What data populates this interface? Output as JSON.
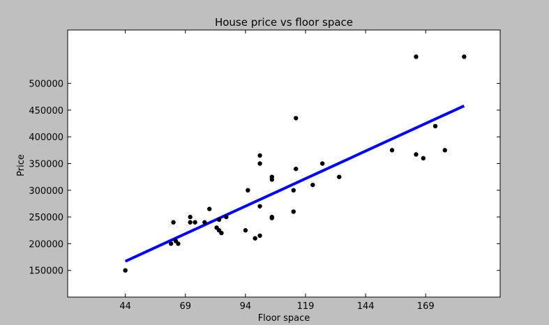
{
  "chart_data": {
    "type": "scatter",
    "title": "House price vs floor space",
    "xlabel": "Floor space",
    "ylabel": "Price",
    "xlim": [
      20,
      200
    ],
    "ylim": [
      100000,
      600000
    ],
    "xticks": [
      44,
      69,
      94,
      119,
      144,
      169
    ],
    "yticks": [
      150000,
      200000,
      250000,
      300000,
      350000,
      400000,
      450000,
      500000
    ],
    "grid": false,
    "point_color": "#000000",
    "line_color": "#0000ff",
    "series": [
      {
        "type": "scatter",
        "points": [
          [
            44,
            150000
          ],
          [
            63,
            200000
          ],
          [
            64,
            240000
          ],
          [
            65,
            205000
          ],
          [
            66,
            200000
          ],
          [
            71,
            250000
          ],
          [
            71,
            240000
          ],
          [
            73,
            240000
          ],
          [
            77,
            240000
          ],
          [
            79,
            265000
          ],
          [
            82,
            230000
          ],
          [
            83,
            225000
          ],
          [
            83,
            245000
          ],
          [
            84,
            220000
          ],
          [
            86,
            250000
          ],
          [
            94,
            225000
          ],
          [
            95,
            300000
          ],
          [
            98,
            210000
          ],
          [
            100,
            215000
          ],
          [
            100,
            270000
          ],
          [
            100,
            350000
          ],
          [
            100,
            365000
          ],
          [
            105,
            320000
          ],
          [
            105,
            325000
          ],
          [
            105,
            250000
          ],
          [
            105,
            248000
          ],
          [
            114,
            260000
          ],
          [
            114,
            300000
          ],
          [
            115,
            340000
          ],
          [
            115,
            435000
          ],
          [
            122,
            310000
          ],
          [
            126,
            350000
          ],
          [
            133,
            325000
          ],
          [
            155,
            375000
          ],
          [
            165,
            367000
          ],
          [
            165,
            550000
          ],
          [
            168,
            360000
          ],
          [
            173,
            420000
          ],
          [
            177,
            375000
          ],
          [
            185,
            550000
          ]
        ]
      },
      {
        "type": "line",
        "points": [
          [
            44,
            167000
          ],
          [
            185,
            458000
          ]
        ]
      }
    ]
  }
}
